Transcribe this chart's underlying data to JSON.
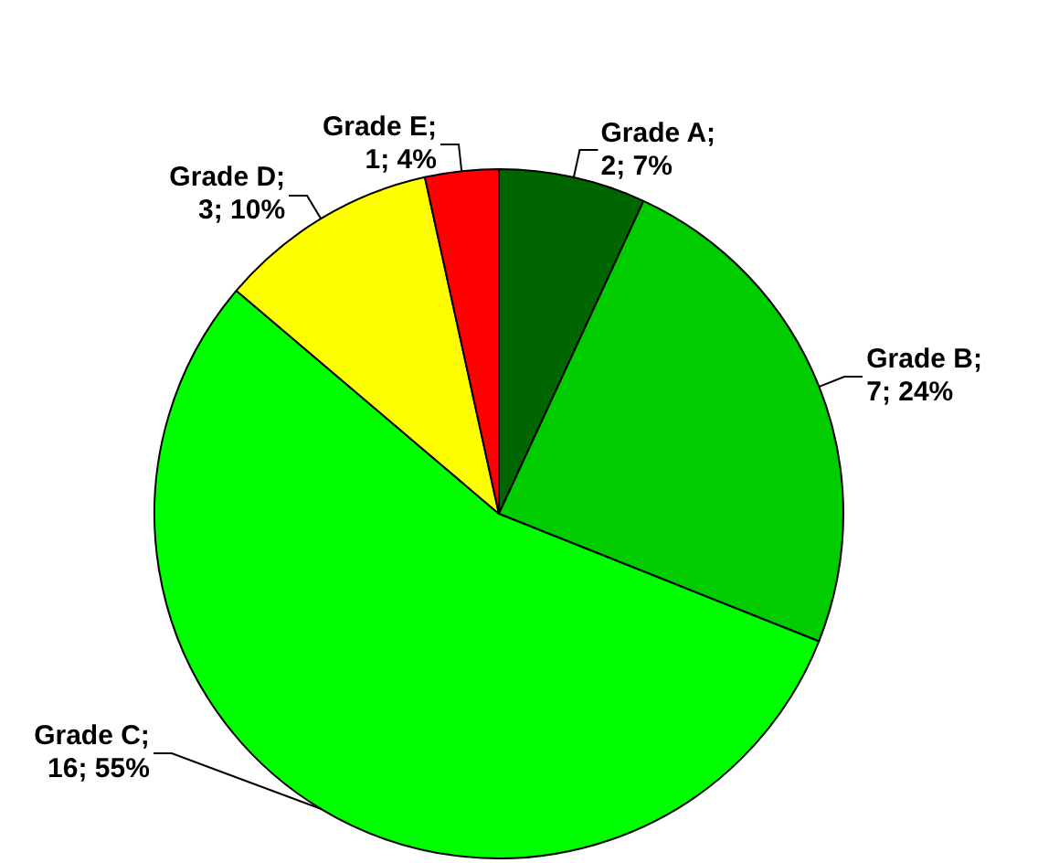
{
  "chart_data": {
    "type": "pie",
    "categories": [
      "Grade A",
      "Grade B",
      "Grade C",
      "Grade D",
      "Grade E"
    ],
    "values": [
      2,
      7,
      16,
      3,
      1
    ],
    "colors": [
      "#006600",
      "#00cc00",
      "#00ff00",
      "#ffff00",
      "#ff0000"
    ],
    "value_labels": [
      "; 2; 7%",
      "; 7; 24%",
      "; 16; 55%",
      "; 3; 10%",
      "; 1; 4%"
    ],
    "legend": false
  }
}
